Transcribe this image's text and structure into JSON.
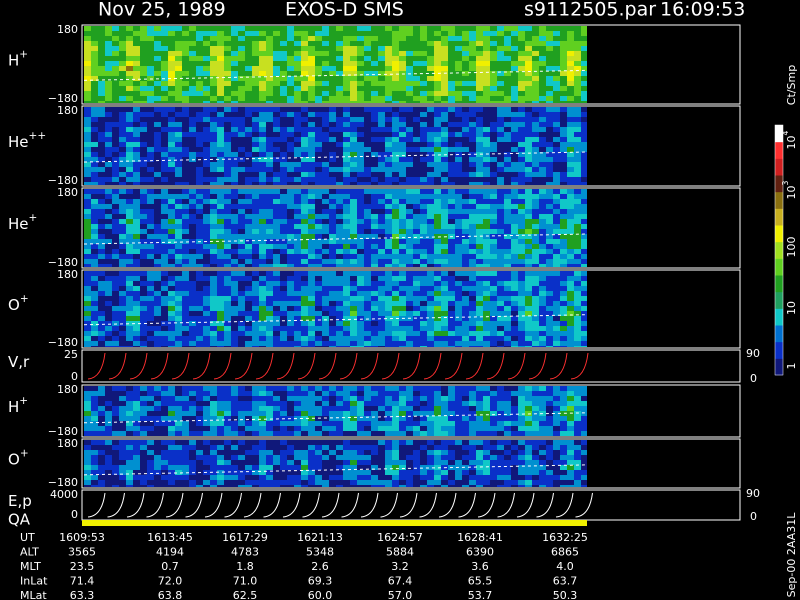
{
  "header": {
    "date": "Nov 25, 1989",
    "instrument": "EXOS-D SMS",
    "file": "s9112505.par",
    "time": "16:09:53"
  },
  "panels": [
    {
      "label": {
        "base": "H",
        "sup": "+"
      },
      "top": "180",
      "bottom": "−180"
    },
    {
      "label": {
        "base": "He",
        "sup": "++"
      },
      "top": "180",
      "bottom": "−180"
    },
    {
      "label": {
        "base": "He",
        "sup": "+"
      },
      "top": "180",
      "bottom": "−180"
    },
    {
      "label": {
        "base": "O",
        "sup": "+"
      },
      "top": "180",
      "bottom": "−180"
    },
    {
      "label": {
        "base": "V,r"
      },
      "top": "25",
      "bottom": "0",
      "right_top": "90",
      "right_bottom": "0"
    },
    {
      "label": {
        "base": "H",
        "sup": "+"
      },
      "top": "180",
      "bottom": "−180"
    },
    {
      "label": {
        "base": "O",
        "sup": "+"
      },
      "top": "180",
      "bottom": "−180"
    },
    {
      "label": {
        "base": "E,p"
      },
      "top": "4000",
      "bottom": "0",
      "right_top": "90",
      "right_bottom": "0"
    }
  ],
  "qa_label": "QA",
  "colorbar": {
    "unit": "Ct/Smp",
    "ticks": [
      {
        "base": "10",
        "sup": "4"
      },
      {
        "base": "10",
        "sup": "3"
      },
      "100",
      "10",
      "1"
    ]
  },
  "table": {
    "rows": [
      {
        "label": "UT",
        "values": [
          "1609:53",
          "1613:45",
          "1617:29",
          "1621:13",
          "1624:57",
          "1628:41",
          "1632:25"
        ]
      },
      {
        "label": "ALT",
        "values": [
          "3565",
          "4194",
          "4783",
          "5348",
          "5884",
          "6390",
          "6865"
        ]
      },
      {
        "label": "MLT",
        "values": [
          "23.5",
          "0.7",
          "1.8",
          "2.6",
          "3.2",
          "3.6",
          "4.0"
        ]
      },
      {
        "label": "InLat",
        "values": [
          "71.4",
          "72.0",
          "71.0",
          "69.3",
          "67.4",
          "65.5",
          "63.7"
        ]
      },
      {
        "label": "MLat",
        "values": [
          "63.3",
          "63.8",
          "62.5",
          "60.0",
          "57.0",
          "53.7",
          "50.3"
        ]
      }
    ]
  },
  "footer": "Sep-00 2AA31L"
}
